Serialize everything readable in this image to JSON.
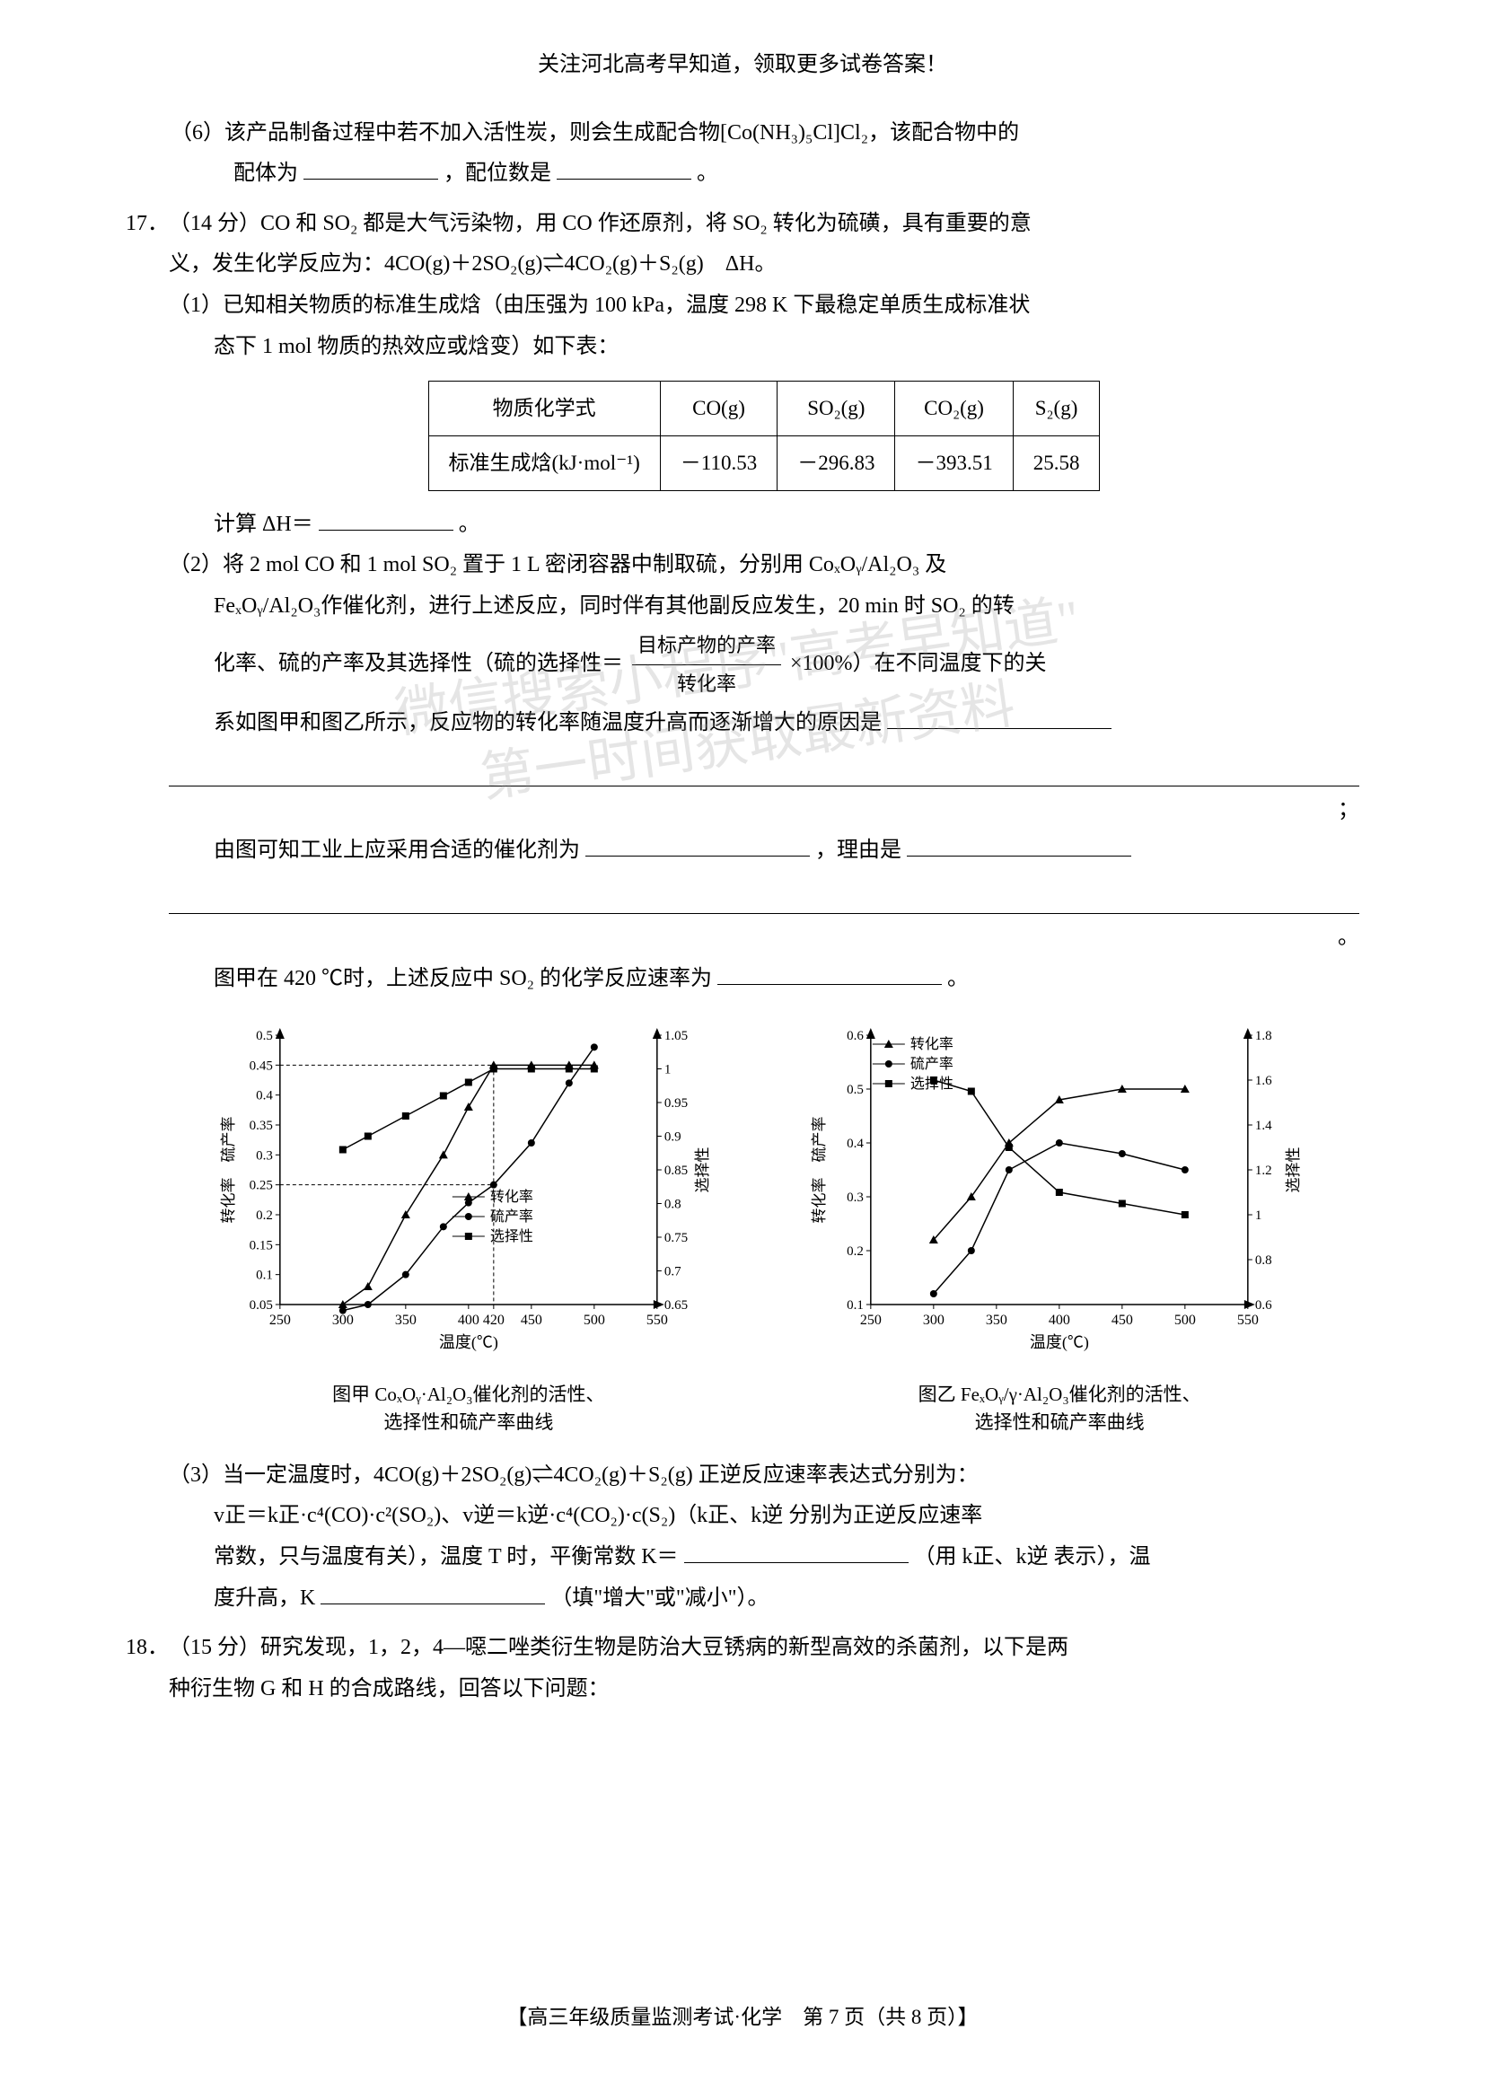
{
  "header": "关注河北高考早知道，领取更多试卷答案！",
  "q16_6": {
    "text_a": "（6）该产品制备过程中若不加入活性炭，则会生成配合物[Co(NH₃)₅Cl]Cl₂，该配合物中的",
    "text_b": "配体为",
    "text_c": "，配位数是",
    "text_d": "。"
  },
  "q17": {
    "num": "17．",
    "points": "（14 分）",
    "intro_a": "CO 和 SO₂ 都是大气污染物，用 CO 作还原剂，将 SO₂ 转化为硫磺，具有重要的意",
    "intro_b": "义，发生化学反应为：4CO(g)＋2SO₂(g)⇌4CO₂(g)＋S₂(g)　ΔH。",
    "p1_a": "（1）已知相关物质的标准生成焓（由压强为 100 kPa，温度 298 K 下最稳定单质生成标准状",
    "p1_b": "态下 1 mol 物质的热效应或焓变）如下表：",
    "table": {
      "headers": [
        "物质化学式",
        "CO(g)",
        "SO₂(g)",
        "CO₂(g)",
        "S₂(g)"
      ],
      "row_label": "标准生成焓(kJ·mol⁻¹)",
      "values": [
        "－110.53",
        "－296.83",
        "－393.51",
        "25.58"
      ]
    },
    "p1_c": "计算 ΔH＝",
    "p1_d": "。",
    "p2_a": "（2）将 2 mol CO 和 1 mol SO₂ 置于 1 L 密闭容器中制取硫，分别用 CoₓOᵧ/Al₂O₃ 及",
    "p2_b": "FeₓOᵧ/Al₂O₃作催化剂，进行上述反应，同时伴有其他副反应发生，20 min 时 SO₂ 的转",
    "p2_c_pre": "化率、硫的产率及其选择性（硫的选择性＝",
    "frac_num": "目标产物的产率",
    "frac_den": "转化率",
    "p2_c_post": "×100%）在不同温度下的关",
    "p2_d": "系如图甲和图乙所示，反应物的转化率随温度升高而逐渐增大的原因是",
    "p2_e": "；",
    "p2_f_pre": "由图可知工业上应采用合适的催化剂为",
    "p2_f_mid": "，理由是",
    "p2_g": "。",
    "p2_h_pre": "图甲在 420 ℃时，上述反应中 SO₂ 的化学反应速率为",
    "p2_h_post": "。",
    "p3_a": "（3）当一定温度时，4CO(g)＋2SO₂(g)⇌4CO₂(g)＋S₂(g) 正逆反应速率表达式分别为：",
    "p3_b": "v正＝k正·c⁴(CO)·c²(SO₂)、v逆＝k逆·c⁴(CO₂)·c(S₂)（k正、k逆 分别为正逆反应速率",
    "p3_c_pre": "常数，只与温度有关），温度 T 时，平衡常数 K＝",
    "p3_c_post": "（用 k正、k逆 表示），温",
    "p3_d_pre": "度升高，K ",
    "p3_d_post": "（填\"增大\"或\"减小\"）。"
  },
  "q18": {
    "num": "18．",
    "points": "（15 分）",
    "text_a": "研究发现，1，2，4—噁二唑类衍生物是防治大豆锈病的新型高效的杀菌剂，以下是两",
    "text_b": "种衍生物 G 和 H 的合成路线，回答以下问题："
  },
  "footer": "【高三年级质量监测考试·化学　第 7 页（共 8 页）】",
  "watermark_line1": "微信搜索小程序\"高考早知道\"",
  "watermark_line2": "第一时间获取最新资料",
  "chart_left": {
    "type": "line-dual-axis",
    "caption_a": "图甲 CoₓOᵧ·Al₂O₃催化剂的活性、",
    "caption_b": "选择性和硫产率曲线",
    "x_label": "温度(℃)",
    "y_left_label": "转化率　硫产率",
    "y_right_label": "选择性",
    "x_ticks": [
      250,
      300,
      350,
      400,
      420,
      450,
      500,
      550
    ],
    "y_left_ticks": [
      0.05,
      0.1,
      0.15,
      0.2,
      0.25,
      0.3,
      0.35,
      0.4,
      0.45,
      0.5
    ],
    "y_right_ticks": [
      0.65,
      0.7,
      0.75,
      0.8,
      0.85,
      0.9,
      0.95,
      1.0,
      1.05
    ],
    "legend": [
      "转化率",
      "硫产率",
      "选择性"
    ],
    "markers": [
      "triangle",
      "circle",
      "square"
    ],
    "series_conv": {
      "x": [
        300,
        320,
        350,
        380,
        400,
        420,
        450,
        480,
        500
      ],
      "y": [
        0.05,
        0.08,
        0.2,
        0.3,
        0.38,
        0.45,
        0.45,
        0.45,
        0.45
      ]
    },
    "series_yield": {
      "x": [
        300,
        320,
        350,
        380,
        400,
        420,
        450,
        480,
        500
      ],
      "y": [
        0.04,
        0.05,
        0.1,
        0.18,
        0.22,
        0.25,
        0.32,
        0.42,
        0.48
      ]
    },
    "series_sel": {
      "x": [
        300,
        320,
        350,
        380,
        400,
        420,
        450,
        480,
        500
      ],
      "y": [
        0.88,
        0.9,
        0.93,
        0.96,
        0.98,
        1.0,
        1.0,
        1.0,
        1.0
      ]
    },
    "ref_x": 420,
    "ref_y1": 0.45,
    "ref_y2": 0.25,
    "colors": {
      "line": "#000000",
      "bg": "#ffffff",
      "axis": "#000000"
    }
  },
  "chart_right": {
    "type": "line-dual-axis",
    "caption_a": "图乙 FeₓOᵧ/γ·Al₂O₃催化剂的活性、",
    "caption_b": "选择性和硫产率曲线",
    "x_label": "温度(℃)",
    "y_left_label": "转化率　硫产率",
    "y_right_label": "选择性",
    "x_ticks": [
      250,
      300,
      350,
      400,
      450,
      500,
      550
    ],
    "y_left_ticks": [
      0.1,
      0.2,
      0.3,
      0.4,
      0.5,
      0.6
    ],
    "y_right_ticks": [
      0.6,
      0.8,
      1.0,
      1.2,
      1.4,
      1.6,
      1.8
    ],
    "legend": [
      "转化率",
      "硫产率",
      "选择性"
    ],
    "markers": [
      "triangle",
      "circle",
      "square"
    ],
    "series_conv": {
      "x": [
        300,
        330,
        360,
        400,
        450,
        500
      ],
      "y": [
        0.22,
        0.3,
        0.4,
        0.48,
        0.5,
        0.5
      ]
    },
    "series_yield": {
      "x": [
        300,
        330,
        360,
        400,
        450,
        500
      ],
      "y": [
        0.12,
        0.2,
        0.35,
        0.4,
        0.38,
        0.35
      ]
    },
    "series_sel": {
      "x": [
        300,
        330,
        360,
        400,
        450,
        500
      ],
      "y": [
        1.6,
        1.55,
        1.3,
        1.1,
        1.05,
        1.0
      ]
    },
    "colors": {
      "line": "#000000",
      "bg": "#ffffff",
      "axis": "#000000"
    }
  }
}
